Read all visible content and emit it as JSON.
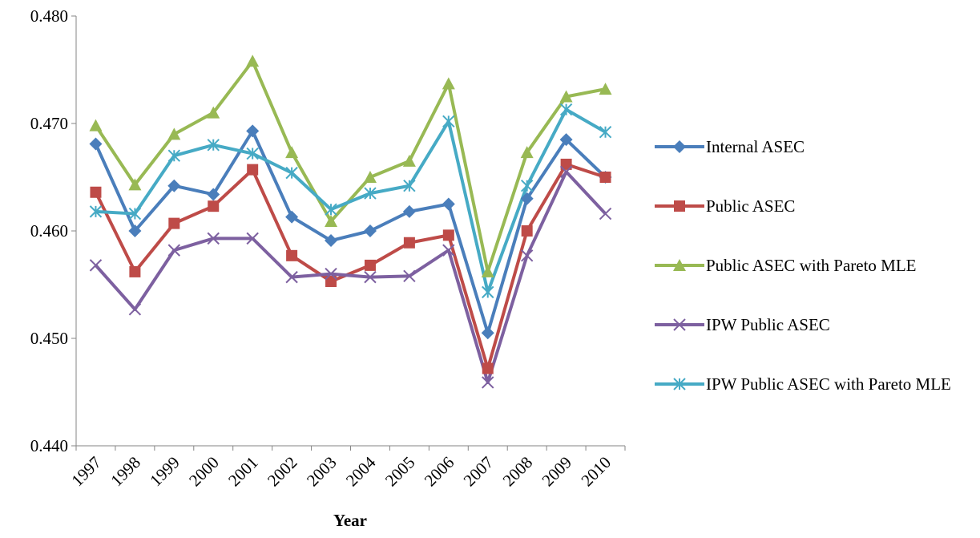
{
  "chart_data": {
    "type": "line",
    "x_label": "Year",
    "categories": [
      "1997",
      "1998",
      "1999",
      "2000",
      "2001",
      "2002",
      "2003",
      "2004",
      "2005",
      "2006",
      "2007",
      "2008",
      "2009",
      "2010"
    ],
    "series": [
      {
        "name": "Internal ASEC",
        "color": "#4a7ebb",
        "marker": "diamond",
        "values": [
          0.4681,
          0.46,
          0.4642,
          0.4634,
          0.4693,
          0.4613,
          0.4591,
          0.46,
          0.4618,
          0.4625,
          0.4505,
          0.463,
          0.4685,
          0.465
        ]
      },
      {
        "name": "Public ASEC",
        "color": "#be4b48",
        "marker": "square",
        "values": [
          0.4636,
          0.4562,
          0.4607,
          0.4623,
          0.4657,
          0.4577,
          0.4553,
          0.4568,
          0.4589,
          0.4596,
          0.4472,
          0.46,
          0.4662,
          0.465
        ]
      },
      {
        "name": "Public ASEC with Pareto MLE",
        "color": "#98b954",
        "marker": "triangle",
        "values": [
          0.4698,
          0.4643,
          0.469,
          0.471,
          0.4758,
          0.4673,
          0.4609,
          0.465,
          0.4665,
          0.4737,
          0.4562,
          0.4673,
          0.4725,
          0.4732
        ]
      },
      {
        "name": "IPW Public ASEC",
        "color": "#7d60a0",
        "marker": "x",
        "values": [
          0.4568,
          0.4527,
          0.4582,
          0.4593,
          0.4593,
          0.4557,
          0.456,
          0.4557,
          0.4558,
          0.4582,
          0.4459,
          0.4577,
          0.4655,
          0.4616
        ]
      },
      {
        "name": "IPW Public ASEC with Pareto MLE",
        "color": "#46aac5",
        "marker": "asterisk",
        "values": [
          0.4618,
          0.4616,
          0.467,
          0.468,
          0.4672,
          0.4654,
          0.462,
          0.4635,
          0.4642,
          0.4702,
          0.4543,
          0.4642,
          0.4713,
          0.4692
        ]
      }
    ],
    "ylim": [
      0.44,
      0.48
    ],
    "yticks": [
      {
        "value": 0.44,
        "label": "0.440"
      },
      {
        "value": 0.45,
        "label": "0.450"
      },
      {
        "value": 0.46,
        "label": "0.460"
      },
      {
        "value": 0.47,
        "label": "0.470"
      },
      {
        "value": 0.48,
        "label": "0.480"
      }
    ],
    "grid": false
  }
}
